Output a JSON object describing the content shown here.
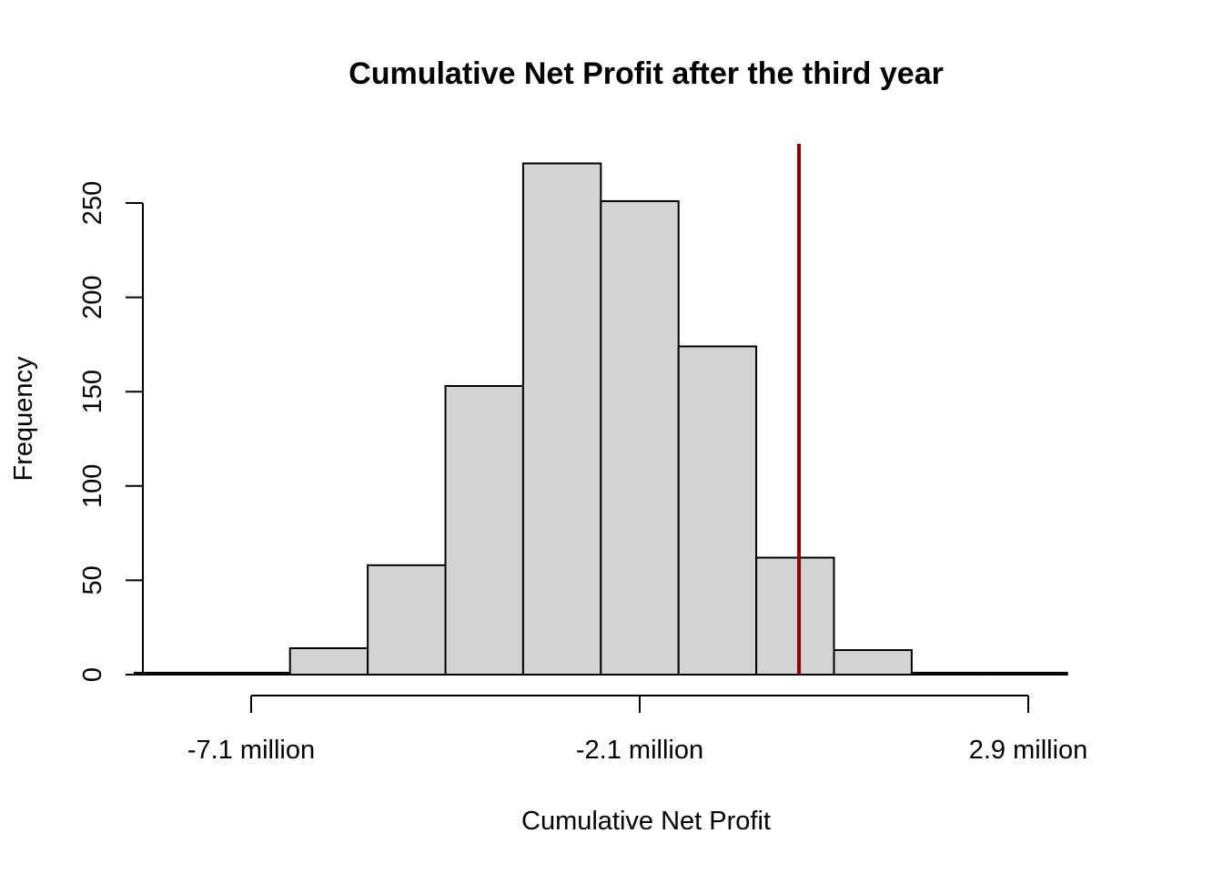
{
  "chart_data": {
    "type": "bar",
    "title": "Cumulative Net Profit after the third year",
    "xlabel": "Cumulative Net Profit",
    "ylabel": "Frequency",
    "x_tick_labels": [
      "-7.1 million",
      "-2.1 million",
      "2.9 million"
    ],
    "x_tick_values": [
      -7.1,
      -2.1,
      2.9
    ],
    "x_unit": "million",
    "y_ticks": [
      0,
      50,
      100,
      150,
      200,
      250
    ],
    "ylim": [
      0,
      280
    ],
    "bin_edges": [
      -8.6,
      -7.6,
      -6.6,
      -5.6,
      -4.6,
      -3.6,
      -2.6,
      -1.6,
      -0.6,
      0.4,
      1.4,
      2.4,
      3.4
    ],
    "values": [
      1,
      1,
      14,
      58,
      153,
      271,
      251,
      174,
      62,
      13,
      1,
      1
    ],
    "reference_line": {
      "x": -0.05,
      "color": "#8B0000"
    },
    "bar_fill": "#D3D3D3",
    "grid": false,
    "legend": "none"
  }
}
